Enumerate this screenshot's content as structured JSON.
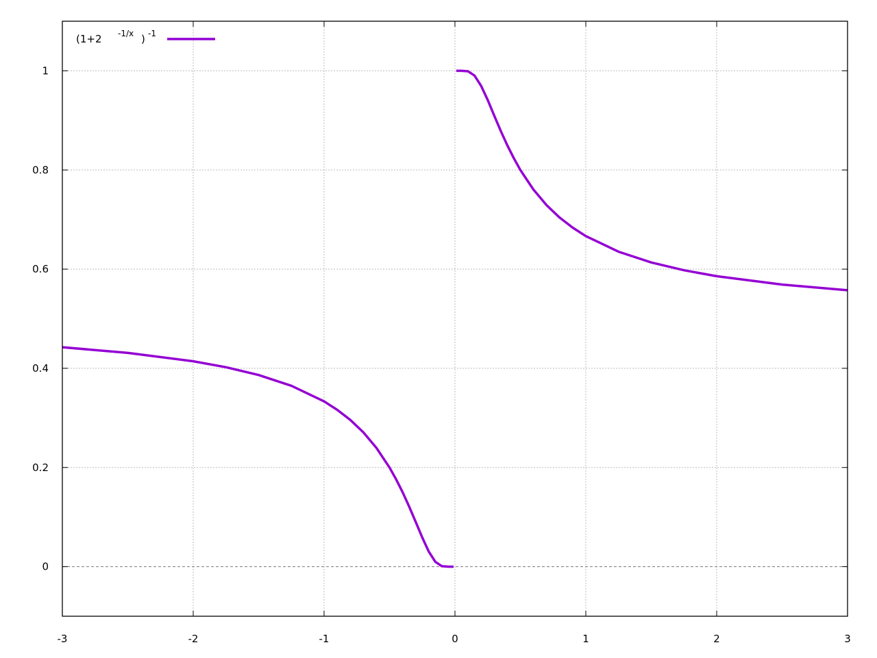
{
  "chart_data": {
    "type": "line",
    "title": "",
    "xlabel": "",
    "ylabel": "",
    "xlim": [
      -3,
      3
    ],
    "ylim": [
      -0.1,
      1.1
    ],
    "grid": true,
    "zero_axis": true,
    "legend_placement": "top-left",
    "x_ticks": [
      "-3",
      "-2",
      "-1",
      "0",
      "1",
      "2",
      "3"
    ],
    "y_ticks": [
      "0",
      "0.2",
      "0.4",
      "0.6",
      "0.8",
      "1"
    ],
    "legend": {
      "base": "(1+2",
      "exponent": "-1/x",
      "close": ")",
      "outer_exponent": "-1"
    },
    "series": [
      {
        "name": "(1+2^(-1/x))^-1",
        "color": "#9400d3",
        "segments": [
          [
            [
              -3,
              0.4425
            ],
            [
              -2.5,
              0.4311
            ],
            [
              -2,
              0.4142
            ],
            [
              -1.75,
              0.4022
            ],
            [
              -1.5,
              0.3865
            ],
            [
              -1.25,
              0.3648
            ],
            [
              -1,
              0.3333
            ],
            [
              -0.9,
              0.3164
            ],
            [
              -0.8,
              0.296
            ],
            [
              -0.7,
              0.2709
            ],
            [
              -0.6,
              0.2395
            ],
            [
              -0.5,
              0.2
            ],
            [
              -0.45,
              0.1765
            ],
            [
              -0.4,
              0.1502
            ],
            [
              -0.35,
              0.1213
            ],
            [
              -0.3,
              0.0903
            ],
            [
              -0.25,
              0.0588
            ],
            [
              -0.2,
              0.0303
            ],
            [
              -0.15,
              0.0097
            ],
            [
              -0.1,
              0.001
            ],
            [
              -0.05,
              0
            ],
            [
              -0.01,
              0
            ]
          ],
          [
            [
              0.01,
              1
            ],
            [
              0.05,
              1
            ],
            [
              0.1,
              0.999
            ],
            [
              0.15,
              0.9903
            ],
            [
              0.2,
              0.9697
            ],
            [
              0.25,
              0.9412
            ],
            [
              0.3,
              0.9097
            ],
            [
              0.35,
              0.8787
            ],
            [
              0.4,
              0.8498
            ],
            [
              0.45,
              0.8235
            ],
            [
              0.5,
              0.8
            ],
            [
              0.6,
              0.7605
            ],
            [
              0.7,
              0.7291
            ],
            [
              0.8,
              0.704
            ],
            [
              0.9,
              0.6836
            ],
            [
              1,
              0.6667
            ],
            [
              1.25,
              0.6352
            ],
            [
              1.5,
              0.6135
            ],
            [
              1.75,
              0.5978
            ],
            [
              2,
              0.5858
            ],
            [
              2.5,
              0.5689
            ],
            [
              3,
              0.5575
            ]
          ]
        ]
      }
    ]
  }
}
